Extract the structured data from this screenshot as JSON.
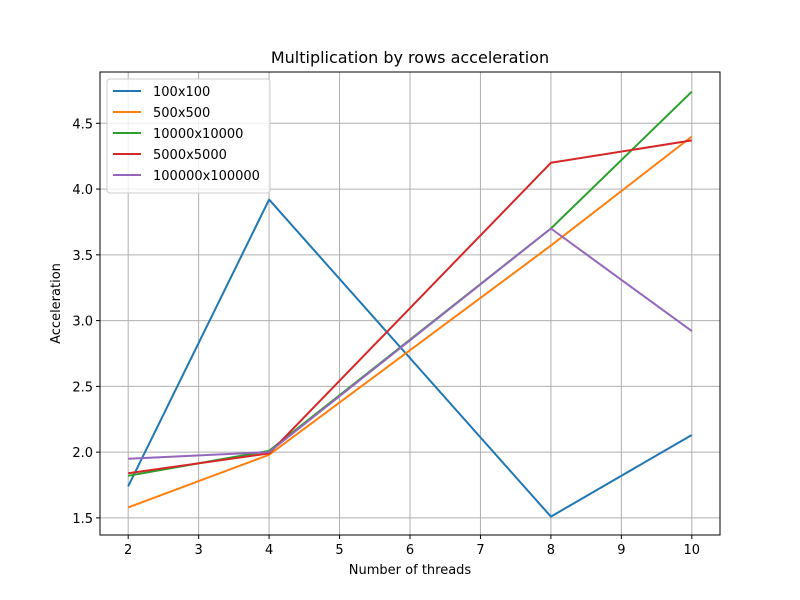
{
  "chart_data": {
    "type": "line",
    "title": "Multiplication by rows acceleration",
    "xlabel": "Number of threads",
    "ylabel": "Acceleration",
    "x": [
      2,
      4,
      8,
      10
    ],
    "xlim": [
      1.6,
      10.4
    ],
    "ylim": [
      1.37,
      4.89
    ],
    "xticks": [
      2,
      3,
      4,
      5,
      6,
      7,
      8,
      9,
      10
    ],
    "yticks": [
      1.5,
      2.0,
      2.5,
      3.0,
      3.5,
      4.0,
      4.5
    ],
    "grid": true,
    "legend_position": "top-left",
    "series": [
      {
        "name": "100x100",
        "color": "#1f77b4",
        "values": [
          1.74,
          3.92,
          1.51,
          2.13
        ]
      },
      {
        "name": "500x500",
        "color": "#ff7f0e",
        "values": [
          1.58,
          1.98,
          3.57,
          4.4
        ]
      },
      {
        "name": "10000x10000",
        "color": "#2ca02c",
        "values": [
          1.82,
          2.01,
          3.7,
          4.74
        ]
      },
      {
        "name": "5000x5000",
        "color": "#d62728",
        "values": [
          1.84,
          1.99,
          4.2,
          4.37
        ]
      },
      {
        "name": "100000x100000",
        "color": "#9467bd",
        "values": [
          1.95,
          2.0,
          3.7,
          2.92
        ]
      }
    ]
  }
}
